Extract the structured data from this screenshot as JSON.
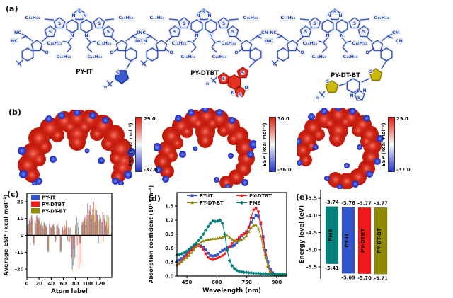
{
  "figure": {
    "panel_labels": {
      "a": "(a)",
      "b": "(b)",
      "c": "(c)",
      "d": "(d)",
      "e": "(e)"
    }
  },
  "panel_a": {
    "structures": [
      {
        "name": "PY-IT"
      },
      {
        "name": "PY-DTBT"
      },
      {
        "name": "PY-DT-BT"
      }
    ],
    "atom_labels": {
      "c11": "C₁₁H₂₃",
      "c10": "C₁₀H₂₁",
      "c12": "C₁₂H₂₅",
      "nc": "NC",
      "cn": "CN",
      "o": "O",
      "s": "S",
      "n_atom": "N",
      "repeat": "n"
    }
  },
  "panel_b": {
    "colorbar_label": "ESP (kcal mol⁻¹)",
    "maps": [
      {
        "max": "29.0",
        "min": "-37.0"
      },
      {
        "max": "30.0",
        "min": "-36.0"
      },
      {
        "max": "29.0",
        "min": "-37.0"
      }
    ]
  },
  "chart_data": [
    {
      "panel": "c",
      "type": "bar",
      "xlabel": "Atom label",
      "ylabel": "Average ESP (kcal mol⁻¹)",
      "xlim": [
        0,
        140
      ],
      "ylim": [
        -25,
        25
      ],
      "grid": false,
      "legend_position": "top-left",
      "xtick_vals": [
        0,
        20,
        40,
        60,
        80,
        100,
        120
      ],
      "xtick_labels": [
        "0",
        "20",
        "40",
        "60",
        "80",
        "100",
        "120"
      ],
      "ytick_vals": [
        -20,
        -10,
        0,
        10,
        20
      ],
      "ytick_labels": [
        "-20",
        "-10",
        "0",
        "10",
        "20"
      ],
      "x": [
        2,
        5,
        8,
        11,
        14,
        17,
        20,
        23,
        26,
        29,
        32,
        35,
        38,
        41,
        44,
        47,
        50,
        53,
        56,
        59,
        62,
        65,
        68,
        71,
        74,
        77,
        80,
        83,
        86,
        89,
        92,
        95,
        98,
        101,
        104,
        107,
        110,
        113,
        116,
        119,
        122,
        125,
        128,
        131,
        134
      ],
      "series": [
        {
          "name": "PY-IT",
          "color": "#3355cc",
          "values": [
            6,
            9,
            11,
            -6,
            8,
            12,
            10,
            7,
            5,
            8,
            6,
            -10,
            7,
            5,
            6,
            -4,
            6,
            5,
            -10,
            4,
            3,
            5,
            -3,
            4,
            -20,
            -18,
            -13,
            11,
            5,
            -5,
            8,
            12,
            6,
            19,
            15,
            10,
            13,
            8,
            15,
            -5,
            10,
            8,
            12,
            6,
            4
          ]
        },
        {
          "name": "PY-DTBT",
          "color": "#f31a1a",
          "values": [
            5,
            10,
            12,
            -5,
            9,
            11,
            9,
            6,
            6,
            7,
            5,
            -9,
            6,
            4,
            7,
            -4,
            5,
            4,
            -9,
            5,
            6,
            9,
            5,
            -4,
            -13,
            -8,
            6,
            -6,
            -20,
            -17,
            7,
            10,
            12,
            14,
            18,
            12,
            20,
            16,
            12,
            9,
            -5,
            14,
            10,
            8,
            6
          ]
        },
        {
          "name": "PY-DT-BT",
          "color": "#8f8a00",
          "values": [
            7,
            8,
            10,
            -6,
            7,
            10,
            11,
            8,
            4,
            6,
            7,
            -10,
            5,
            6,
            5,
            -3,
            7,
            4,
            -10,
            3,
            4,
            6,
            -4,
            5,
            -21,
            -15,
            4,
            8,
            -5,
            6,
            9,
            11,
            10,
            12,
            14,
            16,
            12,
            18,
            10,
            12,
            8,
            -4,
            9,
            12,
            11
          ]
        }
      ]
    },
    {
      "panel": "d",
      "type": "line",
      "xlabel": "Wavelength (nm)",
      "ylabel": "Absorption coefficient (10⁵ cm⁻¹)",
      "xlim": [
        400,
        950
      ],
      "ylim": [
        0,
        1.79
      ],
      "grid": false,
      "legend_position": "top-inside",
      "xtick_vals": [
        450,
        600,
        750,
        900
      ],
      "xtick_labels": [
        "450",
        "600",
        "750",
        "900"
      ],
      "ytick_vals": [
        0,
        0.3,
        0.6,
        0.9,
        1.2,
        1.5
      ],
      "ytick_labels": [
        "0.0",
        "0.3",
        "0.6",
        "0.9",
        "1.2",
        "1.5"
      ],
      "x": [
        400,
        412,
        424,
        436,
        448,
        460,
        472,
        484,
        496,
        508,
        520,
        532,
        544,
        556,
        568,
        580,
        592,
        604,
        616,
        628,
        640,
        652,
        664,
        676,
        688,
        700,
        712,
        724,
        736,
        748,
        760,
        772,
        784,
        796,
        808,
        820,
        832,
        844,
        856,
        868,
        880,
        892,
        904,
        916,
        928,
        940
      ],
      "series": [
        {
          "name": "PY-IT",
          "color": "#3355cc",
          "marker": "square",
          "y": [
            0.31,
            0.34,
            0.38,
            0.43,
            0.48,
            0.53,
            0.58,
            0.62,
            0.65,
            0.66,
            0.65,
            0.62,
            0.56,
            0.49,
            0.44,
            0.43,
            0.44,
            0.47,
            0.51,
            0.55,
            0.58,
            0.61,
            0.63,
            0.64,
            0.66,
            0.71,
            0.78,
            0.86,
            0.91,
            0.95,
            1.04,
            1.15,
            1.24,
            1.3,
            1.28,
            1.12,
            0.85,
            0.55,
            0.3,
            0.15,
            0.07,
            0.04,
            0.03,
            0.02,
            0.02,
            0.02
          ]
        },
        {
          "name": "PY-DTBT",
          "color": "#f31a1a",
          "marker": "circle",
          "y": [
            0.23,
            0.27,
            0.32,
            0.38,
            0.44,
            0.5,
            0.56,
            0.61,
            0.64,
            0.65,
            0.63,
            0.57,
            0.48,
            0.4,
            0.36,
            0.35,
            0.37,
            0.39,
            0.41,
            0.44,
            0.48,
            0.55,
            0.63,
            0.7,
            0.75,
            0.78,
            0.83,
            0.88,
            0.9,
            0.93,
            1.05,
            1.25,
            1.42,
            1.46,
            1.38,
            1.15,
            0.8,
            0.45,
            0.2,
            0.09,
            0.04,
            0.02,
            0.02,
            0.02,
            0.02,
            0.02
          ]
        },
        {
          "name": "PY-DT-BT",
          "color": "#8f8a00",
          "marker": "triangle",
          "y": [
            0.25,
            0.28,
            0.31,
            0.35,
            0.39,
            0.44,
            0.5,
            0.56,
            0.62,
            0.68,
            0.72,
            0.75,
            0.77,
            0.78,
            0.79,
            0.8,
            0.8,
            0.81,
            0.82,
            0.83,
            0.85,
            0.87,
            0.83,
            0.79,
            0.76,
            0.75,
            0.76,
            0.78,
            0.81,
            0.86,
            0.95,
            1.04,
            1.09,
            1.1,
            1.02,
            0.86,
            0.62,
            0.4,
            0.22,
            0.1,
            0.05,
            0.03,
            0.02,
            0.02,
            0.02,
            0.02
          ]
        },
        {
          "name": "PM6",
          "color": "#00807a",
          "marker": "diamond",
          "y": [
            0.45,
            0.46,
            0.48,
            0.5,
            0.53,
            0.57,
            0.61,
            0.66,
            0.7,
            0.76,
            0.82,
            0.9,
            0.98,
            1.06,
            1.13,
            1.18,
            1.17,
            1.18,
            1.2,
            1.13,
            0.9,
            0.55,
            0.33,
            0.22,
            0.16,
            0.12,
            0.1,
            0.09,
            0.08,
            0.08,
            0.07,
            0.07,
            0.06,
            0.06,
            0.06,
            0.05,
            0.05,
            0.05,
            0.04,
            0.04,
            0.04,
            0.04,
            0.04,
            0.04,
            0.04,
            0.04
          ]
        }
      ]
    },
    {
      "panel": "e",
      "type": "bar-range",
      "ylabel": "Energy level (eV)",
      "ylim": [
        -5.85,
        -3.25
      ],
      "ytick_vals": [
        -3.5,
        -4.0,
        -4.5,
        -5.0,
        -5.5
      ],
      "ytick_labels": [
        "-3.5",
        "-4.0",
        "-4.5",
        "-5.0",
        "-5.5"
      ],
      "bars": [
        {
          "name": "PM6",
          "color": "#00807a",
          "lumo": -3.74,
          "homo": -5.41,
          "lumo_label": "-3.74",
          "homo_label": "-5.41"
        },
        {
          "name": "PY-IT",
          "color": "#3355cc",
          "lumo": -3.76,
          "homo": -5.69,
          "lumo_label": "-3.76",
          "homo_label": "-5.69"
        },
        {
          "name": "PY-DTBT",
          "color": "#f31a1a",
          "lumo": -3.77,
          "homo": -5.7,
          "lumo_label": "-3.77",
          "homo_label": "-5.70"
        },
        {
          "name": "PY-DT-BT",
          "color": "#8f8a00",
          "lumo": -3.77,
          "homo": -5.71,
          "lumo_label": "-3.77",
          "homo_label": "-5.71"
        }
      ]
    }
  ]
}
